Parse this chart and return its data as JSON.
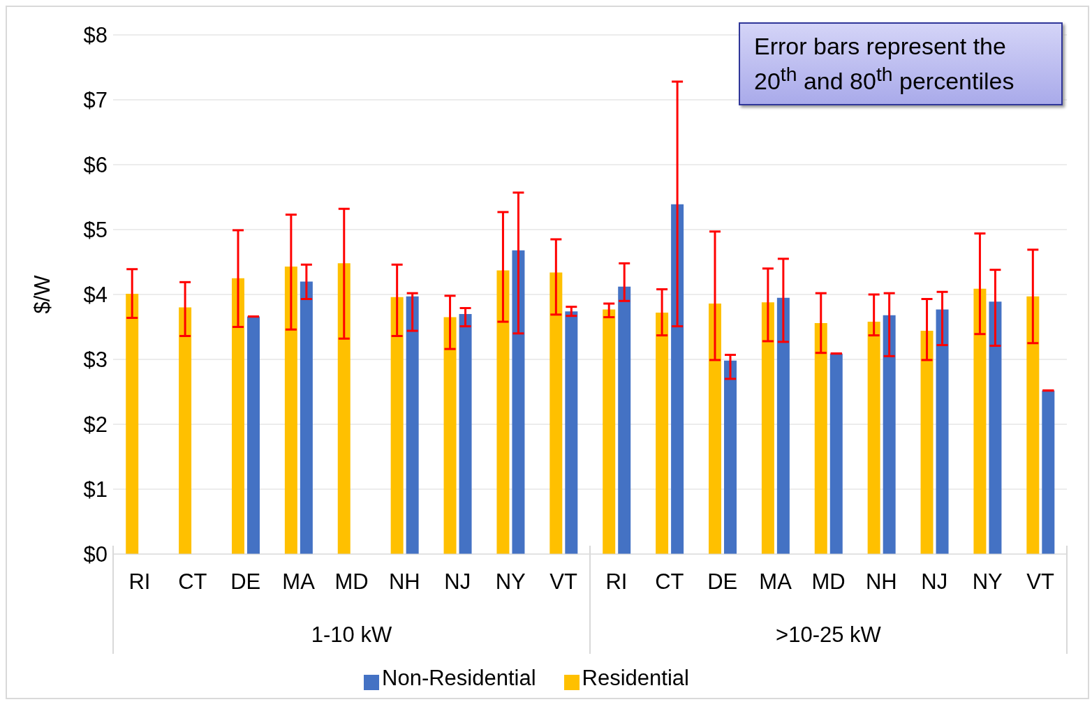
{
  "chart_data": {
    "type": "bar",
    "ylabel": "$/W",
    "categories": [
      "RI",
      "CT",
      "DE",
      "MA",
      "MD",
      "NH",
      "NJ",
      "NY",
      "VT",
      "RI",
      "CT",
      "DE",
      "MA",
      "MD",
      "NH",
      "NJ",
      "NY",
      "VT"
    ],
    "series": [
      {
        "name": "Residential",
        "color": "#ffc000",
        "values": [
          4.01,
          3.8,
          4.25,
          4.43,
          4.48,
          3.96,
          3.65,
          4.37,
          4.34,
          3.77,
          3.72,
          3.86,
          3.88,
          3.56,
          3.58,
          3.44,
          4.09,
          3.97
        ],
        "errors": [
          [
            3.64,
            4.39
          ],
          [
            3.36,
            4.19
          ],
          [
            3.5,
            4.99
          ],
          [
            3.46,
            5.23
          ],
          [
            3.32,
            5.32
          ],
          [
            3.36,
            4.46
          ],
          [
            3.16,
            3.98
          ],
          [
            3.58,
            5.27
          ],
          [
            3.69,
            4.85
          ],
          [
            3.65,
            3.86
          ],
          [
            3.37,
            4.08
          ],
          [
            2.99,
            4.97
          ],
          [
            3.28,
            4.4
          ],
          [
            3.1,
            4.02
          ],
          [
            3.37,
            4.0
          ],
          [
            2.99,
            3.93
          ],
          [
            3.39,
            4.94
          ],
          [
            3.25,
            4.69
          ]
        ]
      },
      {
        "name": "Non-Residential",
        "color": "#4472c4",
        "values": [
          null,
          null,
          3.66,
          4.2,
          null,
          3.97,
          3.7,
          4.68,
          3.74,
          4.12,
          5.39,
          2.98,
          3.95,
          3.09,
          3.68,
          3.77,
          3.89,
          2.52
        ],
        "errors": [
          null,
          null,
          [
            3.66,
            3.66
          ],
          [
            3.93,
            4.46
          ],
          null,
          [
            3.44,
            4.02
          ],
          [
            3.51,
            3.79
          ],
          [
            3.4,
            5.57
          ],
          [
            3.67,
            3.81
          ],
          [
            3.9,
            4.48
          ],
          [
            3.51,
            7.28
          ],
          [
            2.7,
            3.07
          ],
          [
            3.27,
            4.55
          ],
          [
            3.09,
            3.09
          ],
          [
            3.05,
            4.02
          ],
          [
            3.22,
            4.04
          ],
          [
            3.21,
            4.38
          ],
          [
            2.52,
            2.52
          ]
        ]
      }
    ],
    "ylim": [
      0,
      8
    ],
    "yticks": [
      {
        "value": 0,
        "label": "$0"
      },
      {
        "value": 1,
        "label": "$1"
      },
      {
        "value": 2,
        "label": "$2"
      },
      {
        "value": 3,
        "label": "$3"
      },
      {
        "value": 4,
        "label": "$4"
      },
      {
        "value": 5,
        "label": "$5"
      },
      {
        "value": 6,
        "label": "$6"
      },
      {
        "value": 7,
        "label": "$7"
      },
      {
        "value": 8,
        "label": "$8"
      }
    ],
    "grid": "y",
    "legend": "bottom",
    "annotations": [
      "Error bars represent the 20$^{th}$ and 80$^{th}$ percentiles",
      "1-10 kW",
      ">10-25 kW"
    ]
  }
}
